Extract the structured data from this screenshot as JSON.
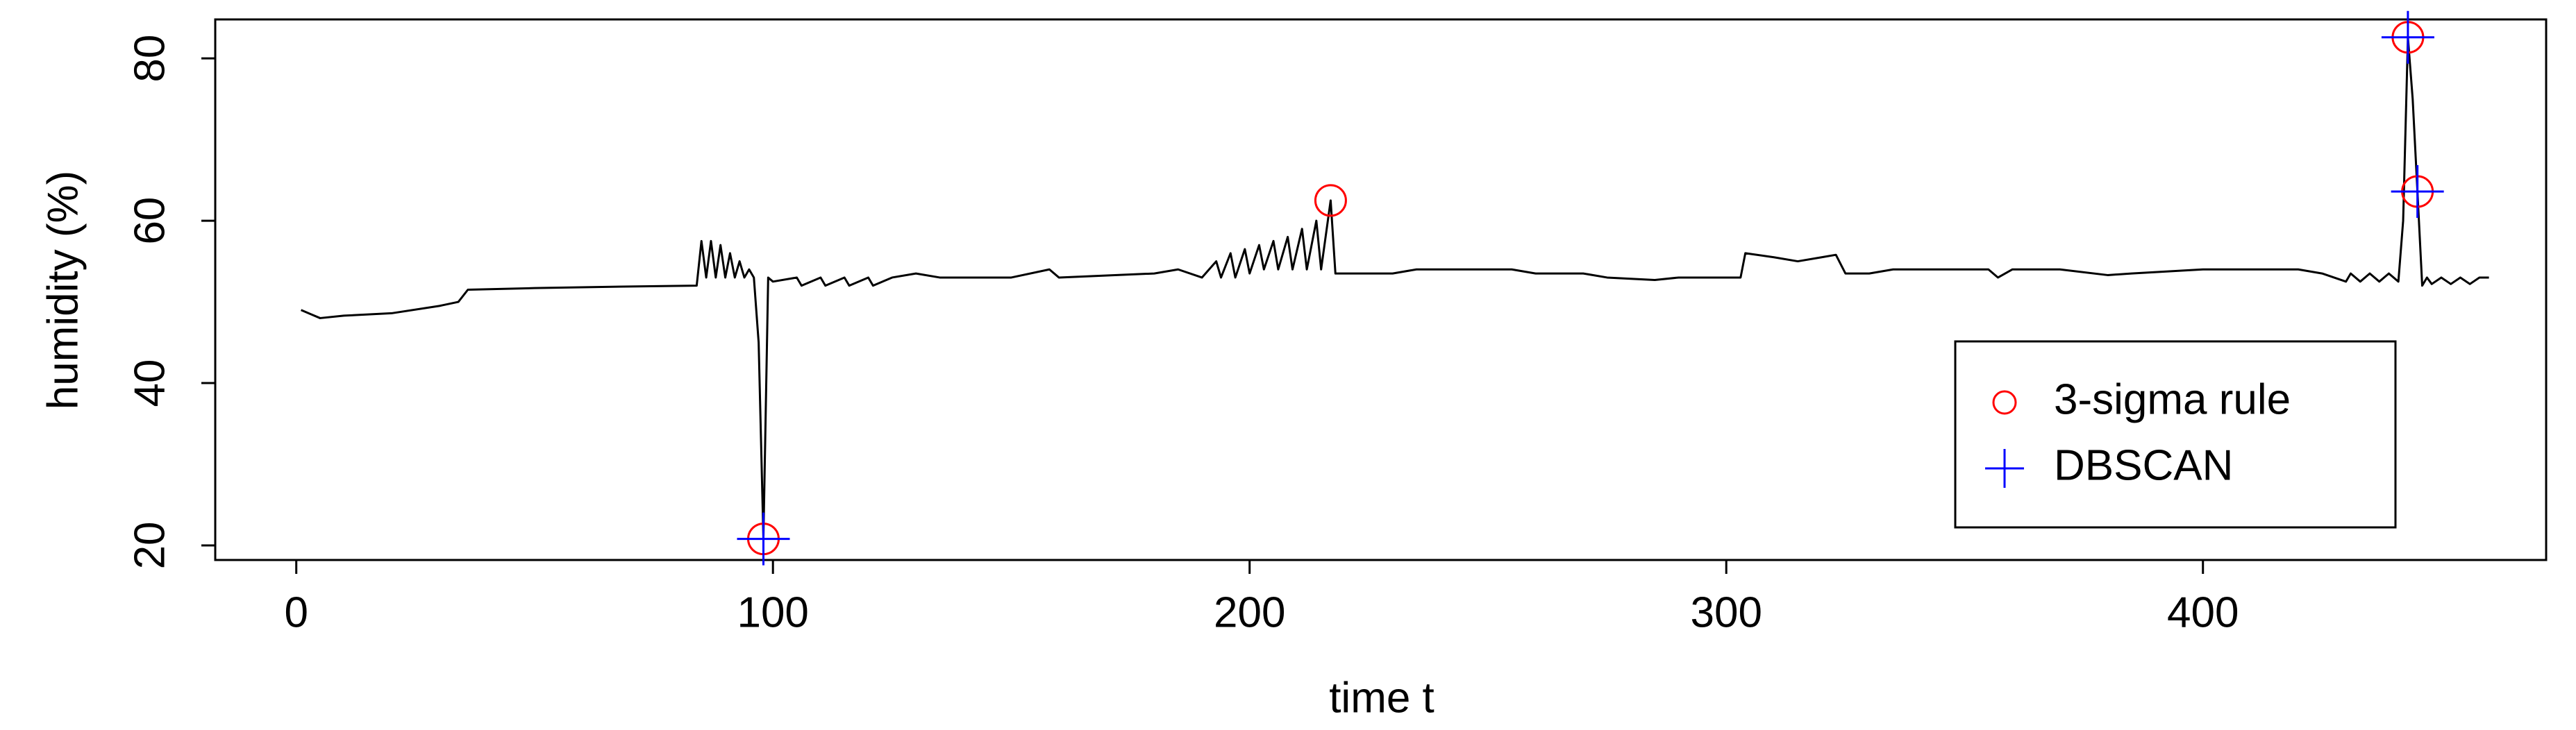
{
  "chart_data": {
    "type": "line",
    "x_label": "time t",
    "y_label": "humidity (%)",
    "xlim": [
      -17,
      472
    ],
    "ylim": [
      18.2,
      84.8
    ],
    "xticks": [
      0,
      100,
      200,
      300,
      400
    ],
    "yticks": [
      20,
      40,
      60,
      80
    ],
    "series": [
      {
        "color": "#000000",
        "marker": "line",
        "x": [
          1,
          3,
          5,
          10,
          20,
          30,
          34,
          36,
          50,
          70,
          84,
          85,
          86,
          87,
          88,
          89,
          90,
          91,
          92,
          93,
          94,
          95,
          96,
          97,
          98,
          99,
          100,
          105,
          106,
          110,
          111,
          115,
          116,
          120,
          121,
          125,
          130,
          135,
          150,
          158,
          160,
          180,
          185,
          190,
          193,
          194,
          196,
          197,
          199,
          200,
          202,
          203,
          205,
          206,
          208,
          209,
          211,
          212,
          214,
          215,
          217,
          218,
          230,
          235,
          255,
          260,
          270,
          275,
          285,
          290,
          303,
          304,
          310,
          315,
          320,
          323,
          325,
          330,
          335,
          355,
          357,
          360,
          370,
          380,
          385,
          400,
          420,
          425,
          430,
          431,
          433,
          435,
          437,
          439,
          441,
          442,
          443,
          444,
          445,
          446,
          447,
          448,
          450,
          452,
          454,
          456,
          458,
          460
        ],
        "values": [
          49,
          48.5,
          48,
          48.3,
          48.6,
          49.5,
          50,
          51.5,
          51.7,
          51.9,
          52,
          57.5,
          53,
          57.5,
          53,
          57,
          53,
          56,
          53,
          55,
          53,
          54,
          53,
          45,
          20.8,
          53,
          52.5,
          53,
          52,
          53,
          52,
          53,
          52,
          53,
          52,
          53,
          53.5,
          53,
          53,
          54,
          53,
          53.5,
          54,
          53,
          55,
          53,
          56,
          53,
          56.5,
          53.5,
          57,
          54,
          57.5,
          54,
          58,
          54,
          59,
          54,
          60,
          54,
          62.5,
          53.5,
          53.5,
          54,
          54,
          53.5,
          53.5,
          53,
          52.7,
          53,
          53,
          56,
          55.5,
          55,
          55.5,
          55.8,
          53.5,
          53.5,
          54,
          54,
          53,
          54,
          54,
          53.3,
          53.5,
          54,
          54,
          53.5,
          52.5,
          53.5,
          52.5,
          53.5,
          52.5,
          53.5,
          52.5,
          60,
          82.6,
          75,
          63.6,
          52,
          53,
          52.2,
          53,
          52.2,
          53,
          52.2,
          53,
          53
        ]
      },
      {
        "name": "3-sigma rule",
        "color": "#ff0000",
        "marker": "circle",
        "x": [
          98,
          217,
          443,
          445
        ],
        "values": [
          20.8,
          62.5,
          82.6,
          63.6
        ]
      },
      {
        "name": "DBSCAN",
        "color": "#0000ff",
        "marker": "plus",
        "x": [
          98,
          443,
          445
        ],
        "values": [
          20.8,
          82.6,
          63.6
        ]
      }
    ]
  }
}
